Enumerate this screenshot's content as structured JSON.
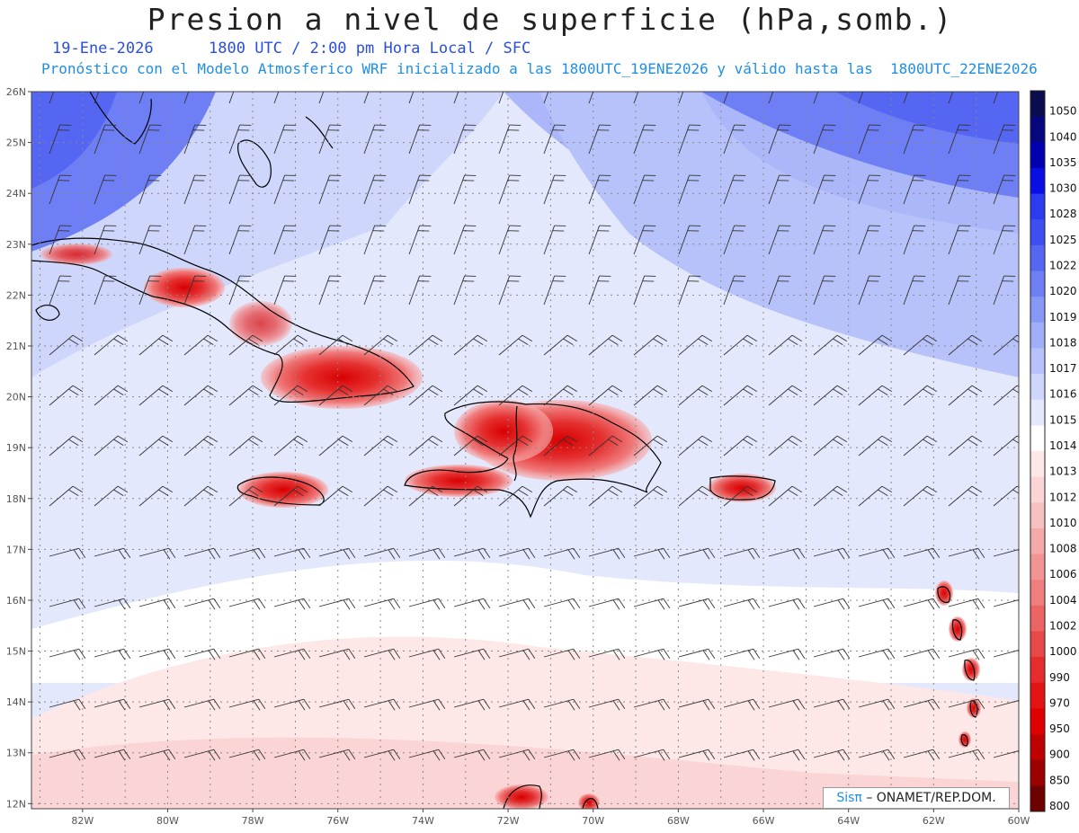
{
  "title": "Presion a nivel de superficie (hPa,somb.)",
  "date": "19-Ene-2026",
  "time_line": "1800 UTC / 2:00 pm Hora Local / SFC",
  "forecast_line": "Pronóstico con el Modelo Atmosferico WRF inicializado a las 1800UTC_19ENE2026 y válido hasta las  1800UTC_22ENE2026",
  "credit": {
    "brand": "Sisπ",
    "text": "– ONAMET/REP.DOM."
  },
  "lat_labels": [
    "26N",
    "25N",
    "24N",
    "23N",
    "22N",
    "21N",
    "20N",
    "19N",
    "18N",
    "17N",
    "16N",
    "15N",
    "14N",
    "13N",
    "12N"
  ],
  "lon_labels": [
    "82W",
    "80W",
    "78W",
    "76W",
    "74W",
    "72W",
    "70W",
    "68W",
    "66W",
    "64W",
    "62W",
    "60W"
  ],
  "extent": {
    "lon_min": -83.2,
    "lon_max": -60,
    "lat_min": 11.9,
    "lat_max": 26
  },
  "colorbar": [
    {
      "label": "1050",
      "color": "#0b0b4f"
    },
    {
      "label": "1040",
      "color": "#06067e"
    },
    {
      "label": "1035",
      "color": "#0000b0"
    },
    {
      "label": "1030",
      "color": "#0a0ee6"
    },
    {
      "label": "1028",
      "color": "#2a3bf0"
    },
    {
      "label": "1025",
      "color": "#3f4ef2"
    },
    {
      "label": "1022",
      "color": "#5566f3"
    },
    {
      "label": "1020",
      "color": "#6e7ff5"
    },
    {
      "label": "1019",
      "color": "#8898f7"
    },
    {
      "label": "1018",
      "color": "#a1aef8"
    },
    {
      "label": "1017",
      "color": "#b8c2fa"
    },
    {
      "label": "1016",
      "color": "#ced6fc"
    },
    {
      "label": "1015",
      "color": "#e4e8fd"
    },
    {
      "label": "1014",
      "color": "#ffffff"
    },
    {
      "label": "1013",
      "color": "#fde7e7"
    },
    {
      "label": "1012",
      "color": "#fbd5d5"
    },
    {
      "label": "1010",
      "color": "#f8c1c1"
    },
    {
      "label": "1008",
      "color": "#f5aaaa"
    },
    {
      "label": "1006",
      "color": "#f29494"
    },
    {
      "label": "1004",
      "color": "#ef7e7e"
    },
    {
      "label": "1002",
      "color": "#ec6464"
    },
    {
      "label": "1000",
      "color": "#e94848"
    },
    {
      "label": "990",
      "color": "#e62c2c"
    },
    {
      "label": "970",
      "color": "#e51414"
    },
    {
      "label": "950",
      "color": "#e00000"
    },
    {
      "label": "900",
      "color": "#c00000"
    },
    {
      "label": "850",
      "color": "#9c0000"
    },
    {
      "label": "800",
      "color": "#6e0000"
    }
  ]
}
